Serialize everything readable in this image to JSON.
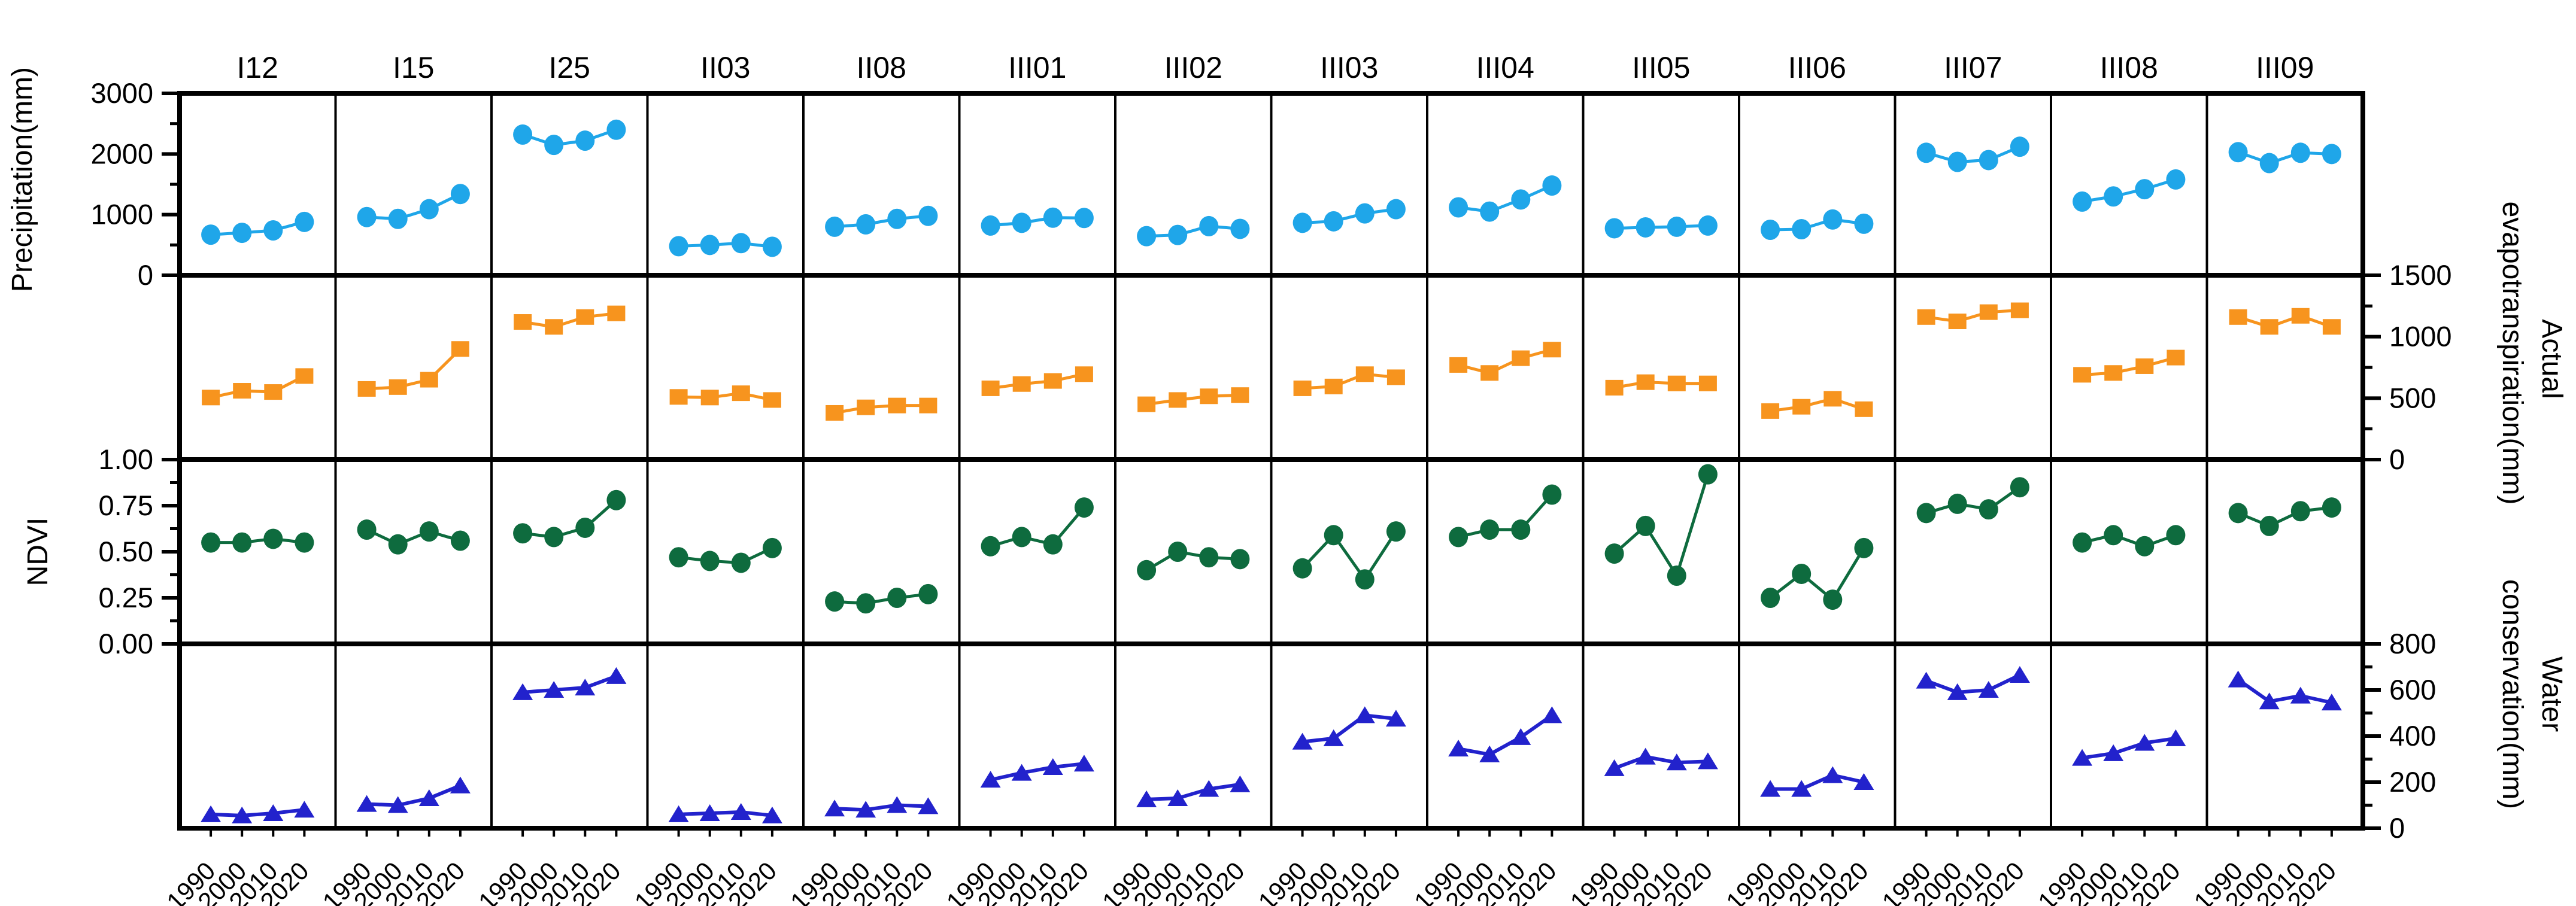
{
  "chart_data": {
    "type": "line",
    "layout": "small_multiples_grid",
    "grid": "off",
    "title": "",
    "columns": [
      "I12",
      "I15",
      "I25",
      "II03",
      "II08",
      "III01",
      "III02",
      "III03",
      "III04",
      "III05",
      "III06",
      "III07",
      "III08",
      "III09"
    ],
    "x": [
      1990,
      2000,
      2010,
      2020
    ],
    "x_labels": [
      "1990",
      "2000",
      "2010",
      "2020"
    ],
    "rows": [
      {
        "key": "precipitation",
        "label": "Precipitation(mm)",
        "axis_side": "left",
        "ylim": [
          0,
          3000
        ],
        "tick_values": [
          0,
          1000,
          2000,
          3000
        ],
        "tick_labels": [
          "0",
          "1000",
          "2000",
          "3000"
        ],
        "minor_step": 500,
        "color": "#1FA6E9",
        "marker": "circle",
        "series": {
          "I12": [
            670,
            700,
            740,
            880
          ],
          "I15": [
            960,
            930,
            1090,
            1340
          ],
          "I25": [
            2320,
            2150,
            2220,
            2400
          ],
          "II03": [
            480,
            500,
            530,
            470
          ],
          "II08": [
            800,
            840,
            930,
            980
          ],
          "III01": [
            820,
            865,
            950,
            945
          ],
          "III02": [
            645,
            665,
            810,
            765
          ],
          "III03": [
            865,
            890,
            1020,
            1090
          ],
          "III04": [
            1120,
            1050,
            1250,
            1480
          ],
          "III05": [
            775,
            790,
            800,
            820
          ],
          "III06": [
            750,
            760,
            920,
            850
          ],
          "III07": [
            2020,
            1870,
            1900,
            2120
          ],
          "III08": [
            1215,
            1300,
            1420,
            1580
          ],
          "III09": [
            2030,
            1850,
            2020,
            2000
          ]
        }
      },
      {
        "key": "aet",
        "label": "Actual evapotranspiration(mm)",
        "label_lines": [
          "Actual",
          "evapotranspiration(mm)"
        ],
        "axis_side": "right",
        "ylim": [
          0,
          1500
        ],
        "tick_values": [
          0,
          500,
          1000,
          1500
        ],
        "tick_labels": [
          "0",
          "500",
          "1000",
          "1500"
        ],
        "minor_step": 250,
        "color": "#F7941E",
        "marker": "square",
        "series": {
          "I12": [
            505,
            560,
            550,
            680
          ],
          "I15": [
            575,
            590,
            650,
            900
          ],
          "I25": [
            1120,
            1080,
            1160,
            1190
          ],
          "II03": [
            510,
            505,
            540,
            485
          ],
          "II08": [
            380,
            425,
            440,
            440
          ],
          "III01": [
            580,
            615,
            640,
            695
          ],
          "III02": [
            450,
            485,
            515,
            525
          ],
          "III03": [
            580,
            595,
            695,
            670
          ],
          "III04": [
            770,
            705,
            825,
            895
          ],
          "III05": [
            585,
            630,
            620,
            620
          ],
          "III06": [
            395,
            430,
            495,
            410
          ],
          "III07": [
            1160,
            1125,
            1200,
            1215
          ],
          "III08": [
            690,
            705,
            760,
            830
          ],
          "III09": [
            1160,
            1080,
            1170,
            1080
          ]
        }
      },
      {
        "key": "ndvi",
        "label": "NDVI",
        "axis_side": "left",
        "ylim": [
          0,
          1
        ],
        "tick_values": [
          0,
          0.25,
          0.5,
          0.75,
          1.0
        ],
        "tick_labels": [
          "0.00",
          "0.25",
          "0.50",
          "0.75",
          "1.00"
        ],
        "minor_step": 0.125,
        "color": "#0E6B3E",
        "marker": "circle",
        "series": {
          "I12": [
            0.55,
            0.55,
            0.57,
            0.55
          ],
          "I15": [
            0.62,
            0.54,
            0.61,
            0.56
          ],
          "I25": [
            0.6,
            0.58,
            0.63,
            0.78
          ],
          "II03": [
            0.47,
            0.45,
            0.44,
            0.52
          ],
          "II08": [
            0.23,
            0.22,
            0.25,
            0.27
          ],
          "III01": [
            0.53,
            0.58,
            0.54,
            0.74
          ],
          "III02": [
            0.4,
            0.5,
            0.47,
            0.46
          ],
          "III03": [
            0.41,
            0.59,
            0.35,
            0.61
          ],
          "III04": [
            0.58,
            0.62,
            0.62,
            0.81
          ],
          "III05": [
            0.49,
            0.64,
            0.37,
            0.92
          ],
          "III06": [
            0.25,
            0.38,
            0.24,
            0.52
          ],
          "III07": [
            0.71,
            0.76,
            0.73,
            0.85
          ],
          "III08": [
            0.55,
            0.59,
            0.53,
            0.59
          ],
          "III09": [
            0.71,
            0.64,
            0.72,
            0.74
          ]
        }
      },
      {
        "key": "water_conservation",
        "label": "Water conservation(mm)",
        "label_lines": [
          "Water",
          "conservation(mm)"
        ],
        "axis_side": "right",
        "ylim": [
          0,
          800
        ],
        "tick_values": [
          0,
          200,
          400,
          600,
          800
        ],
        "tick_labels": [
          "0",
          "200",
          "400",
          "600",
          "800"
        ],
        "minor_step": 100,
        "color": "#2222CC",
        "marker": "triangle",
        "series": {
          "I12": [
            60,
            55,
            65,
            80
          ],
          "I15": [
            105,
            100,
            130,
            185
          ],
          "I25": [
            590,
            600,
            610,
            660
          ],
          "II03": [
            60,
            65,
            70,
            55
          ],
          "II08": [
            85,
            80,
            100,
            95
          ],
          "III01": [
            210,
            240,
            265,
            280
          ],
          "III02": [
            125,
            130,
            170,
            190
          ],
          "III03": [
            375,
            390,
            490,
            475
          ],
          "III04": [
            345,
            320,
            395,
            490
          ],
          "III05": [
            260,
            310,
            285,
            290
          ],
          "III06": [
            170,
            170,
            230,
            200
          ],
          "III07": [
            640,
            590,
            600,
            665
          ],
          "III08": [
            305,
            325,
            370,
            390
          ],
          "III09": [
            645,
            550,
            575,
            545
          ]
        }
      }
    ]
  }
}
